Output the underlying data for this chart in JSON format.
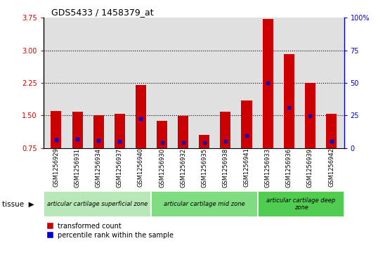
{
  "title": "GDS5433 / 1458379_at",
  "samples": [
    "GSM1256929",
    "GSM1256931",
    "GSM1256934",
    "GSM1256937",
    "GSM1256940",
    "GSM1256930",
    "GSM1256932",
    "GSM1256935",
    "GSM1256938",
    "GSM1256941",
    "GSM1256933",
    "GSM1256936",
    "GSM1256939",
    "GSM1256942"
  ],
  "red_values": [
    1.6,
    1.58,
    1.51,
    1.53,
    2.2,
    1.38,
    1.48,
    1.05,
    1.58,
    1.85,
    3.72,
    2.92,
    2.25,
    1.53
  ],
  "blue_values": [
    0.93,
    0.95,
    0.92,
    0.9,
    1.43,
    0.88,
    0.87,
    0.87,
    0.91,
    1.03,
    2.25,
    1.68,
    1.48,
    0.9
  ],
  "groups": [
    {
      "label": "articular cartilage superficial zone",
      "start": 0,
      "end": 5,
      "color": "#b8e8b8"
    },
    {
      "label": "articular cartilage mid zone",
      "start": 5,
      "end": 10,
      "color": "#80dc80"
    },
    {
      "label": "articular cartilage deep\nzone",
      "start": 10,
      "end": 14,
      "color": "#50cc50"
    }
  ],
  "ylim_left": [
    0.75,
    3.75
  ],
  "ylim_right": [
    0,
    100
  ],
  "yticks_left": [
    0.75,
    1.5,
    2.25,
    3.0,
    3.75
  ],
  "yticks_right": [
    0,
    25,
    50,
    75,
    100
  ],
  "ytick_labels_right": [
    "0",
    "25",
    "50",
    "75",
    "100%"
  ],
  "bar_width": 0.5,
  "bar_color": "#cc0000",
  "dot_color": "#0000cc",
  "plot_bg": "#e0e0e0",
  "tissue_label": "tissue",
  "legend_red": "transformed count",
  "legend_blue": "percentile rank within the sample"
}
